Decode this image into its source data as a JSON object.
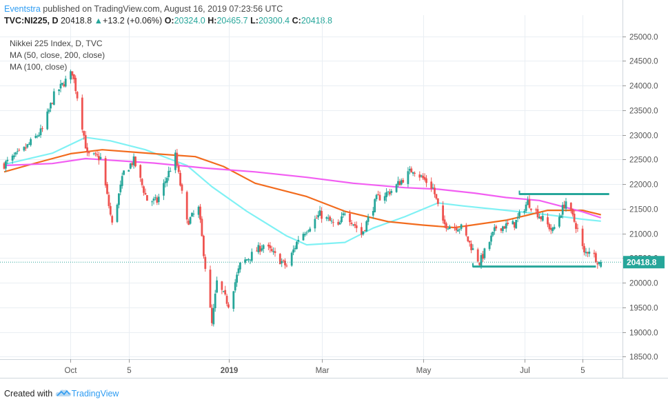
{
  "header": {
    "author": "Eventstra",
    "published_text": "published on TradingView.com, August 16, 2019 07:23:56 UTC"
  },
  "quote": {
    "symbol": "TVC:NI225, D",
    "last": "20418.8",
    "arrow": "▲",
    "change": "+13.2 (+0.06%)",
    "open_label": "O:",
    "open": "20324.0",
    "high_label": "H:",
    "high": "20465.7",
    "low_label": "L:",
    "low": "20300.4",
    "close_label": "C:",
    "close": "20418.8"
  },
  "legend": {
    "title": "Nikkei 225 Index, D, TVC",
    "ma1": "MA (50, close, 200, close)",
    "ma2": "MA (100, close)"
  },
  "price_badge": "20418.8",
  "footer": {
    "created_with": "Created with",
    "brand": "TradingView"
  },
  "colors": {
    "up": "#26a69a",
    "down": "#ef5350",
    "grid": "#e9eef3",
    "axis": "#555555",
    "ma50": "#7ff1f4",
    "ma200": "#f26b1d",
    "ma100": "#f25ef2",
    "trendline": "#26a69a",
    "badge": "#26a69a"
  },
  "chart_data": {
    "type": "candlestick",
    "title": "Nikkei 225 Index, D, TVC",
    "y_range": [
      18450,
      25150
    ],
    "y_ticks": [
      25000.0,
      24500.0,
      24000.0,
      23500.0,
      23000.0,
      22500.0,
      22000.0,
      21500.0,
      21000.0,
      20500.0,
      20000.0,
      19500.0,
      19000.0,
      18500.0
    ],
    "y_tick_labels": [
      "25000.0",
      "24500.0",
      "24000.0",
      "23500.0",
      "23000.0",
      "22500.0",
      "22000.0",
      "21500.0",
      "21000.0",
      "20500.0",
      "20000.0",
      "19500.0",
      "19000.0",
      "18500.0"
    ],
    "x_range": [
      "2018-08-22",
      "2019-08-29"
    ],
    "x_ticks": [
      {
        "date": "2018-10-01",
        "label": "Oct"
      },
      {
        "date": "2018-11-05",
        "label": "5"
      },
      {
        "date": "2019-01-04",
        "label": "2019"
      },
      {
        "date": "2019-03-01",
        "label": "Mar"
      },
      {
        "date": "2019-05-01",
        "label": "May"
      },
      {
        "date": "2019-07-01",
        "label": "Jul"
      },
      {
        "date": "2019-08-05",
        "label": "5"
      }
    ],
    "last_price": 20418.8,
    "ohlc_anchors": [
      {
        "date": "2018-08-22",
        "close": 22400
      },
      {
        "date": "2018-09-03",
        "close": 22700
      },
      {
        "date": "2018-09-14",
        "close": 23100
      },
      {
        "date": "2018-09-21",
        "close": 23800
      },
      {
        "date": "2018-10-02",
        "close": 24270
      },
      {
        "date": "2018-10-05",
        "close": 23780
      },
      {
        "date": "2018-10-11",
        "close": 22590
      },
      {
        "date": "2018-10-19",
        "close": 22530
      },
      {
        "date": "2018-10-26",
        "close": 21180
      },
      {
        "date": "2018-11-02",
        "close": 22240
      },
      {
        "date": "2018-11-08",
        "close": 22480
      },
      {
        "date": "2018-11-16",
        "close": 21680
      },
      {
        "date": "2018-11-22",
        "close": 21650
      },
      {
        "date": "2018-12-03",
        "close": 22570
      },
      {
        "date": "2018-12-10",
        "close": 21220
      },
      {
        "date": "2018-12-17",
        "close": 21500
      },
      {
        "date": "2018-12-25",
        "close": 19150
      },
      {
        "date": "2018-12-28",
        "close": 20010
      },
      {
        "date": "2019-01-04",
        "close": 19560
      },
      {
        "date": "2019-01-11",
        "close": 20360
      },
      {
        "date": "2019-01-25",
        "close": 20770
      },
      {
        "date": "2019-02-08",
        "close": 20330
      },
      {
        "date": "2019-02-15",
        "close": 20900
      },
      {
        "date": "2019-02-28",
        "close": 21390
      },
      {
        "date": "2019-03-11",
        "close": 21120
      },
      {
        "date": "2019-03-15",
        "close": 21450
      },
      {
        "date": "2019-03-25",
        "close": 20980
      },
      {
        "date": "2019-04-03",
        "close": 21700
      },
      {
        "date": "2019-04-12",
        "close": 21870
      },
      {
        "date": "2019-04-25",
        "close": 22310
      },
      {
        "date": "2019-05-07",
        "close": 21920
      },
      {
        "date": "2019-05-13",
        "close": 21190
      },
      {
        "date": "2019-05-24",
        "close": 21120
      },
      {
        "date": "2019-06-04",
        "close": 20410
      },
      {
        "date": "2019-06-14",
        "close": 21120
      },
      {
        "date": "2019-06-25",
        "close": 21190
      },
      {
        "date": "2019-07-03",
        "close": 21640
      },
      {
        "date": "2019-07-18",
        "close": 21050
      },
      {
        "date": "2019-07-26",
        "close": 21660
      },
      {
        "date": "2019-08-02",
        "close": 21080
      },
      {
        "date": "2019-08-06",
        "close": 20580
      },
      {
        "date": "2019-08-09",
        "close": 20680
      },
      {
        "date": "2019-08-15",
        "close": 20410
      },
      {
        "date": "2019-08-16",
        "close": 20418.8
      }
    ],
    "series": [
      {
        "name": "MA 50",
        "points": [
          {
            "date": "2018-08-22",
            "value": 22400
          },
          {
            "date": "2018-09-20",
            "value": 22630
          },
          {
            "date": "2018-10-10",
            "value": 22950
          },
          {
            "date": "2018-10-25",
            "value": 22880
          },
          {
            "date": "2018-11-15",
            "value": 22700
          },
          {
            "date": "2018-12-10",
            "value": 22380
          },
          {
            "date": "2018-12-25",
            "value": 21950
          },
          {
            "date": "2019-01-15",
            "value": 21450
          },
          {
            "date": "2019-02-08",
            "value": 20950
          },
          {
            "date": "2019-02-20",
            "value": 20770
          },
          {
            "date": "2019-03-15",
            "value": 20820
          },
          {
            "date": "2019-04-01",
            "value": 21110
          },
          {
            "date": "2019-04-20",
            "value": 21340
          },
          {
            "date": "2019-05-10",
            "value": 21620
          },
          {
            "date": "2019-05-25",
            "value": 21560
          },
          {
            "date": "2019-06-20",
            "value": 21470
          },
          {
            "date": "2019-07-15",
            "value": 21380
          },
          {
            "date": "2019-08-05",
            "value": 21290
          },
          {
            "date": "2019-08-16",
            "value": 21250
          }
        ]
      },
      {
        "name": "MA 200",
        "points": [
          {
            "date": "2018-08-22",
            "value": 22250
          },
          {
            "date": "2018-09-10",
            "value": 22430
          },
          {
            "date": "2018-10-01",
            "value": 22620
          },
          {
            "date": "2018-10-20",
            "value": 22700
          },
          {
            "date": "2018-11-20",
            "value": 22620
          },
          {
            "date": "2018-12-15",
            "value": 22560
          },
          {
            "date": "2019-01-01",
            "value": 22360
          },
          {
            "date": "2019-01-20",
            "value": 22020
          },
          {
            "date": "2019-02-20",
            "value": 21750
          },
          {
            "date": "2019-03-15",
            "value": 21450
          },
          {
            "date": "2019-04-10",
            "value": 21240
          },
          {
            "date": "2019-05-01",
            "value": 21170
          },
          {
            "date": "2019-05-20",
            "value": 21120
          },
          {
            "date": "2019-06-20",
            "value": 21270
          },
          {
            "date": "2019-07-15",
            "value": 21470
          },
          {
            "date": "2019-08-05",
            "value": 21470
          },
          {
            "date": "2019-08-16",
            "value": 21380
          }
        ]
      },
      {
        "name": "MA 100",
        "points": [
          {
            "date": "2018-08-22",
            "value": 22380
          },
          {
            "date": "2018-09-20",
            "value": 22420
          },
          {
            "date": "2018-10-10",
            "value": 22520
          },
          {
            "date": "2018-11-20",
            "value": 22430
          },
          {
            "date": "2018-12-20",
            "value": 22330
          },
          {
            "date": "2019-01-20",
            "value": 22250
          },
          {
            "date": "2019-02-20",
            "value": 22140
          },
          {
            "date": "2019-03-20",
            "value": 22020
          },
          {
            "date": "2019-04-20",
            "value": 21930
          },
          {
            "date": "2019-05-10",
            "value": 21900
          },
          {
            "date": "2019-06-01",
            "value": 21820
          },
          {
            "date": "2019-06-20",
            "value": 21730
          },
          {
            "date": "2019-07-10",
            "value": 21670
          },
          {
            "date": "2019-08-05",
            "value": 21440
          },
          {
            "date": "2019-08-16",
            "value": 21320
          }
        ]
      }
    ],
    "drawings": [
      {
        "type": "horizontal_segment",
        "from": "2019-06-28",
        "to": "2019-08-21",
        "value": 21800
      },
      {
        "type": "horizontal_segment",
        "from": "2019-05-31",
        "to": "2019-08-13",
        "value": 20330
      }
    ]
  }
}
